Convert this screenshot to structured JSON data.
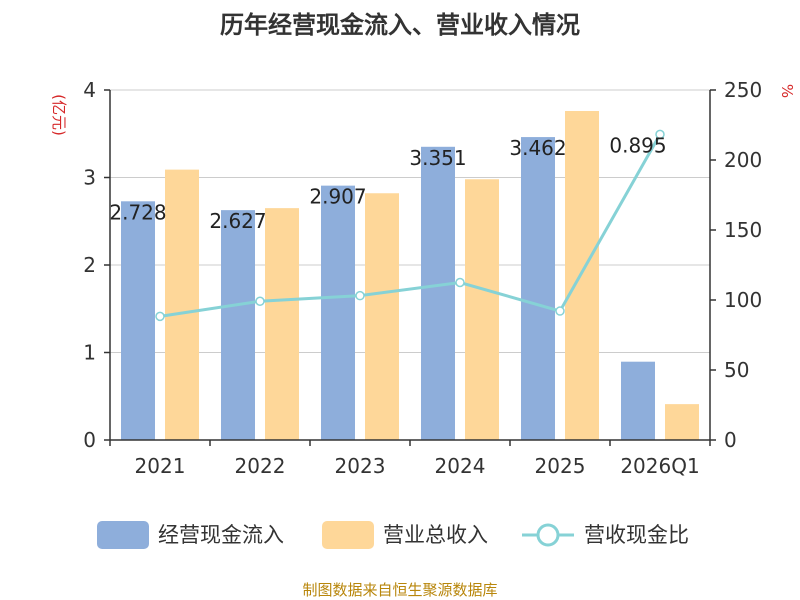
{
  "title": "历年经营现金流入、营业收入情况",
  "units": {
    "left": "(亿元)",
    "right": "%"
  },
  "source": "制图数据来自恒生聚源数据库",
  "colors": {
    "cash_inflow": "#8eaedb",
    "revenue": "#fed799",
    "ratio": "#86d2d6",
    "axis": "#333333",
    "grid": "#cccccc",
    "title": "#333333",
    "unit": "#d62728",
    "source": "#b8860b"
  },
  "chart_data": {
    "type": "bar",
    "title": "历年经营现金流入、营业收入情况",
    "categories": [
      "2021",
      "2022",
      "2023",
      "2024",
      "2025",
      "2026Q1"
    ],
    "series": [
      {
        "name": "经营现金流入",
        "type": "bar",
        "axis": "left",
        "values": [
          2.728,
          2.627,
          2.907,
          3.351,
          3.462,
          0.895
        ]
      },
      {
        "name": "营业总收入",
        "type": "bar",
        "axis": "left",
        "values": [
          3.09,
          2.65,
          2.82,
          2.98,
          3.76,
          0.41
        ]
      },
      {
        "name": "营收现金比",
        "type": "line",
        "axis": "right",
        "values": [
          88.3,
          99.1,
          103.1,
          112.5,
          92.1,
          218.3
        ]
      }
    ],
    "data_labels": [
      "2.728",
      "2.627",
      "2.907",
      "3.351",
      "3.462",
      "0.895"
    ],
    "y_left": {
      "label": "(亿元)",
      "min": 0,
      "max": 4,
      "ticks": [
        "0",
        "1",
        "2",
        "3",
        "4"
      ]
    },
    "y_right": {
      "label": "%",
      "min": 0,
      "max": 250,
      "ticks": [
        "0",
        "50",
        "100",
        "150",
        "200",
        "250"
      ]
    },
    "grid": true,
    "legend_position": "bottom"
  }
}
